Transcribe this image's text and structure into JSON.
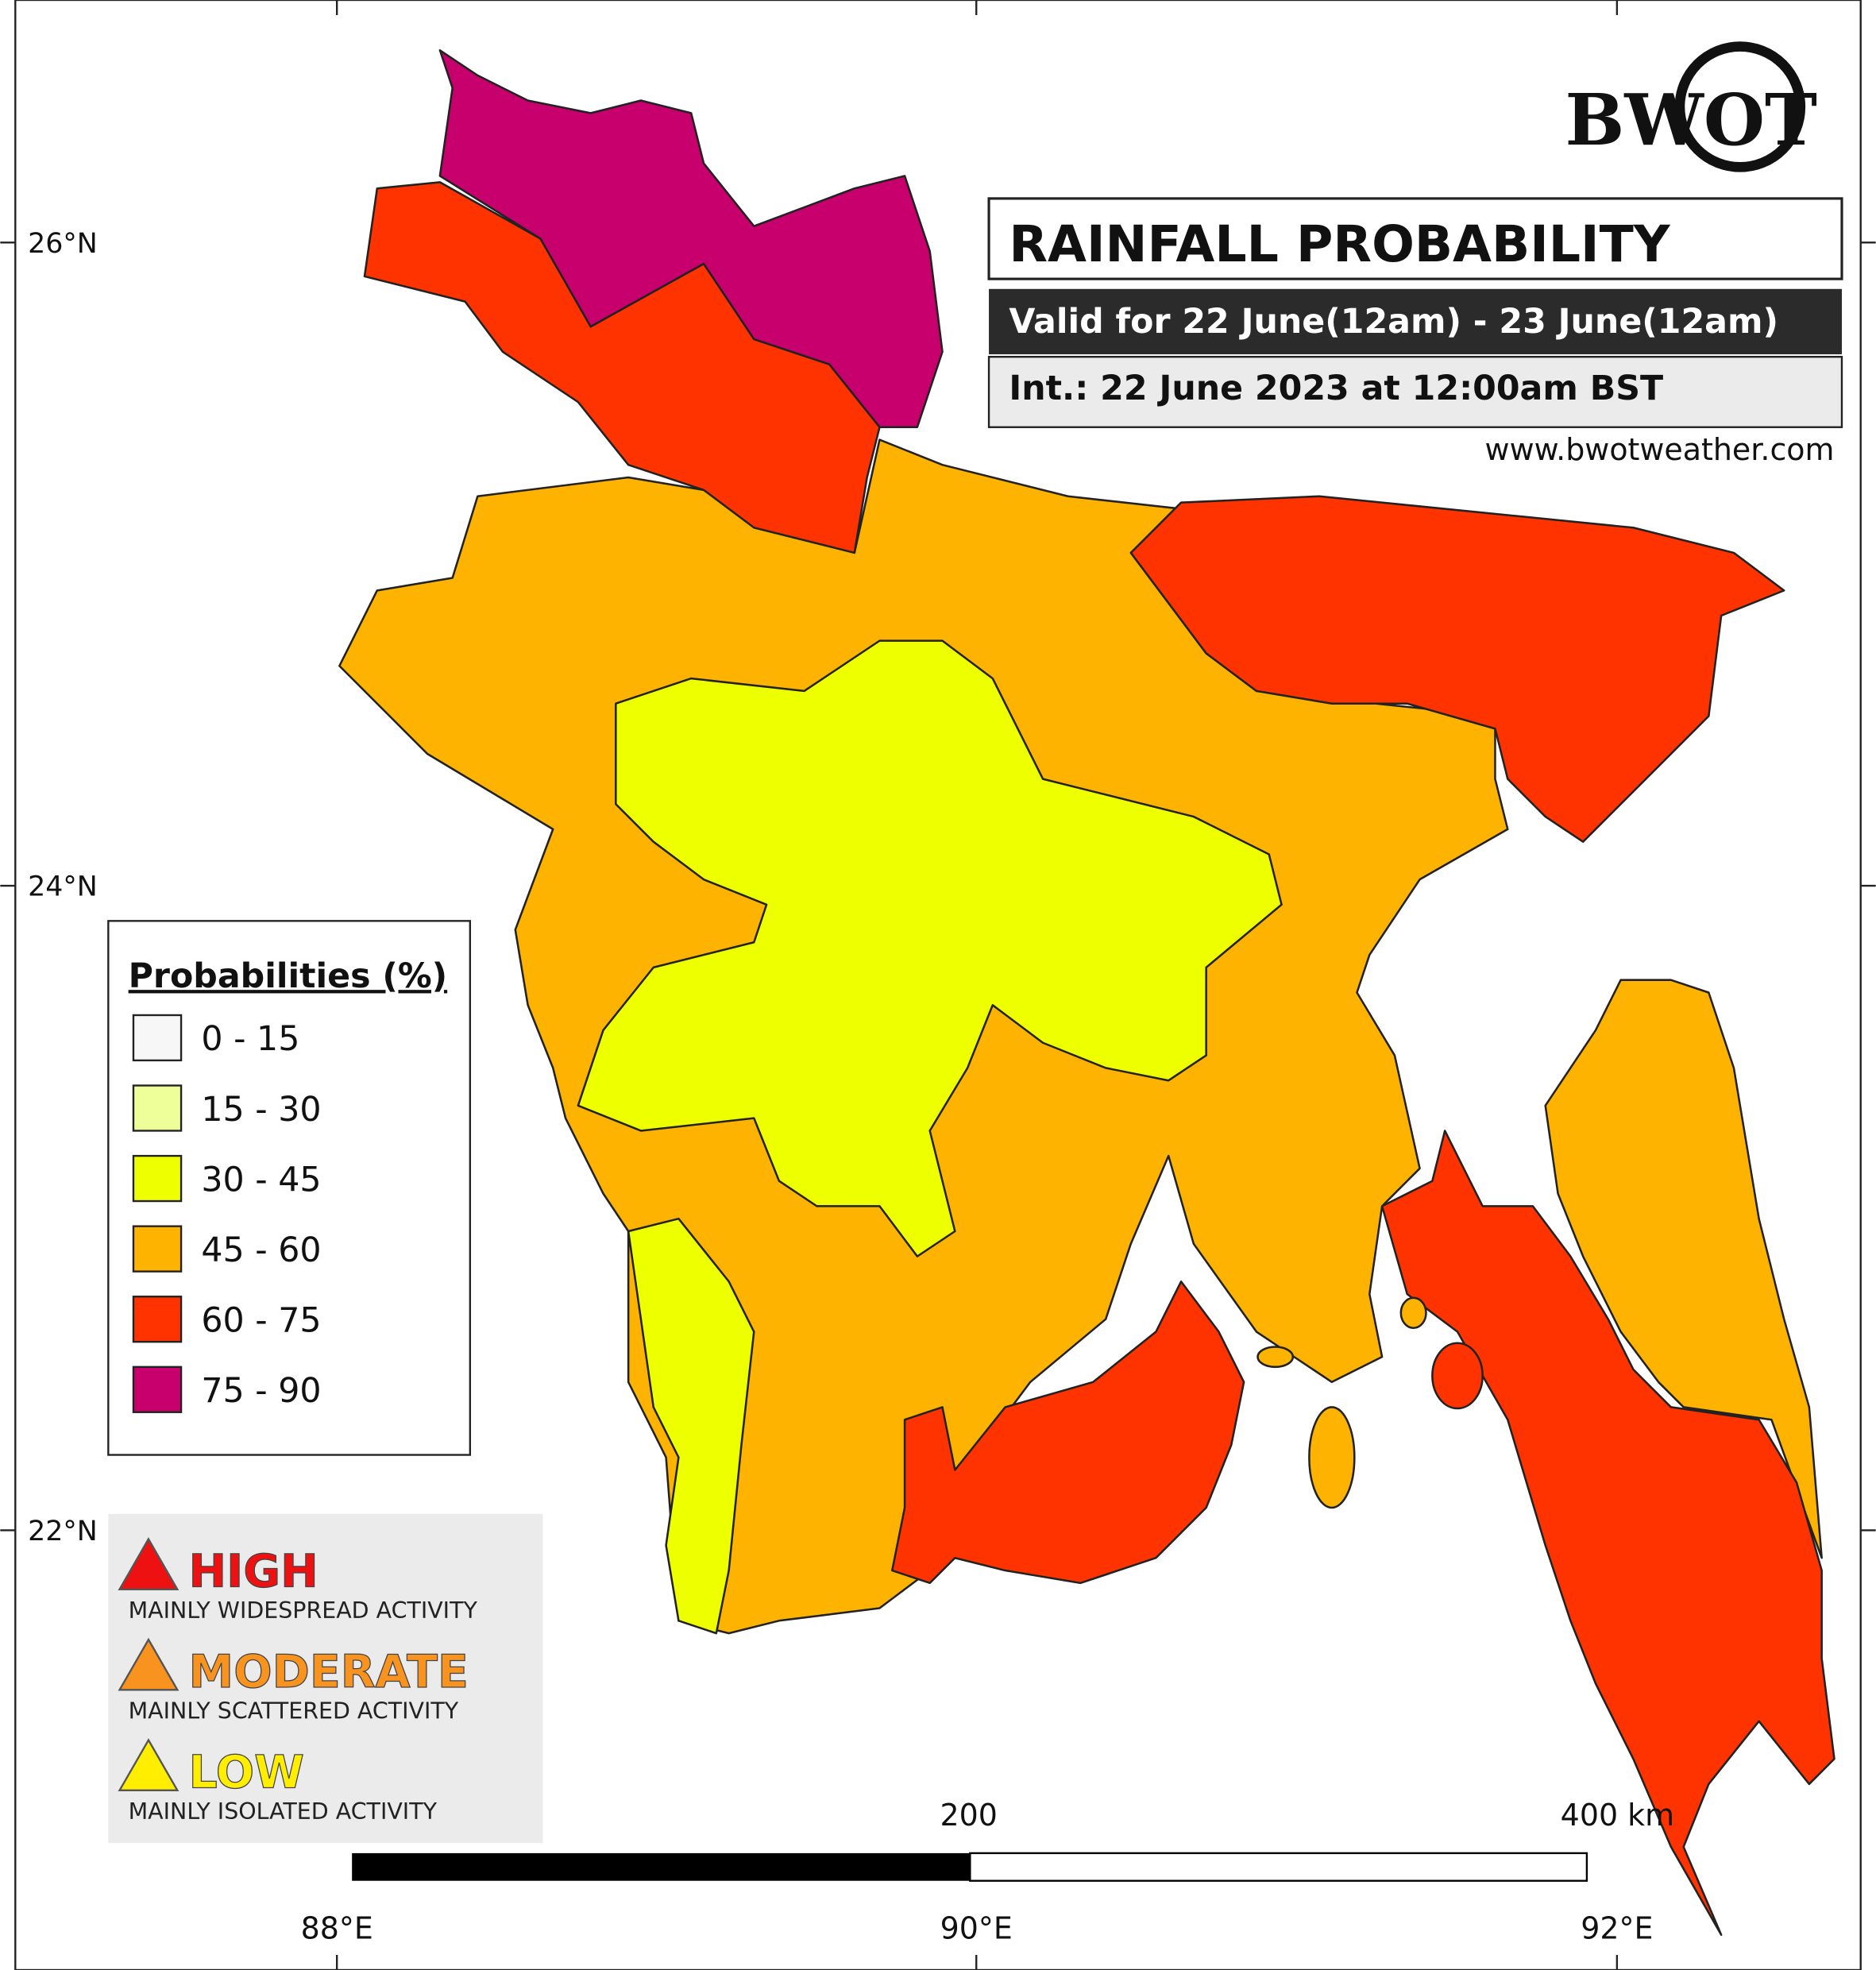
{
  "header": {
    "logo": "BWOT",
    "title": "RAINFALL PROBABILITY",
    "valid": "Valid for 22 June(12am) - 23 June(12am)",
    "issued": "Int.: 22 June 2023 at 12:00am BST",
    "website": "www.bwotweather.com"
  },
  "legend": {
    "title": "Probabilities (%)",
    "items": [
      {
        "label": "0 - 15",
        "color": "#f7f7f7"
      },
      {
        "label": "15 - 30",
        "color": "#eeff99"
      },
      {
        "label": "30 - 45",
        "color": "#eeff00"
      },
      {
        "label": "45 - 60",
        "color": "#fdb300"
      },
      {
        "label": "60 - 75",
        "color": "#ff3300"
      },
      {
        "label": "75 - 90",
        "color": "#c8006e"
      }
    ]
  },
  "activity": [
    {
      "level": "HIGH",
      "description": "MAINLY WIDESPREAD ACTIVITY",
      "color": "#ee1111"
    },
    {
      "level": "MODERATE",
      "description": "MAINLY SCATTERED ACTIVITY",
      "color": "#f7931e"
    },
    {
      "level": "LOW",
      "description": "MAINLY ISOLATED ACTIVITY",
      "color": "#ffee00"
    }
  ],
  "axes": {
    "longitudes": [
      "88°E",
      "90°E",
      "92°E"
    ],
    "latitudes": [
      "26°N",
      "24°N",
      "22°N"
    ]
  },
  "scale_bar": {
    "mid": "200",
    "end": "400 km"
  }
}
